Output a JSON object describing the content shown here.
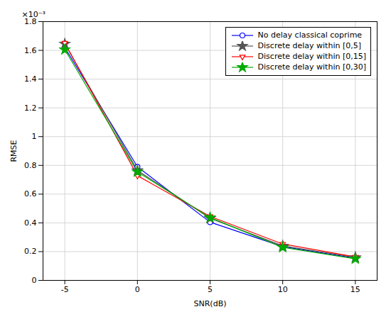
{
  "chart_data": {
    "type": "line",
    "x": [
      -5,
      0,
      5,
      10,
      15
    ],
    "series": [
      {
        "name": "No delay classical coprime",
        "color": "#0000ff",
        "marker": "circle",
        "values": [
          0.00162,
          0.00079,
          0.000405,
          0.000235,
          0.000155
        ]
      },
      {
        "name": "Discrete delay within [0,5]",
        "color": "#555555",
        "marker": "star",
        "values": [
          0.001645,
          0.000765,
          0.000432,
          0.00024,
          0.00016
        ]
      },
      {
        "name": "Discrete delay within [0,15]",
        "color": "#ff0000",
        "marker": "triangle-down",
        "values": [
          0.001652,
          0.000728,
          0.000445,
          0.000253,
          0.000163
        ]
      },
      {
        "name": "Discrete delay within [0,30]",
        "color": "#00aa00",
        "marker": "star",
        "values": [
          0.001605,
          0.000755,
          0.000437,
          0.00023,
          0.00015
        ]
      }
    ],
    "xlabel": "SNR(dB)",
    "ylabel": "RMSE",
    "xlim": [
      -6.5,
      16.5
    ],
    "ylim": [
      0,
      0.0018
    ],
    "xticks": [
      -5,
      0,
      5,
      10,
      15
    ],
    "yticks": [
      0,
      {
        "value": 0.0002,
        "label": "0.2"
      },
      {
        "value": 0.0004,
        "label": "0.4"
      },
      {
        "value": 0.0006,
        "label": "0.6"
      },
      {
        "value": 0.0008,
        "label": "0.8"
      },
      {
        "value": 0.001,
        "label": "1"
      },
      {
        "value": 0.0012,
        "label": "1.2"
      },
      {
        "value": 0.0014,
        "label": "1.4"
      },
      {
        "value": 0.0016,
        "label": "1.6"
      },
      {
        "value": 0.0018,
        "label": "1.8"
      }
    ],
    "annotations": [
      "×10⁻³"
    ],
    "grid": true,
    "legend": "upper right"
  }
}
